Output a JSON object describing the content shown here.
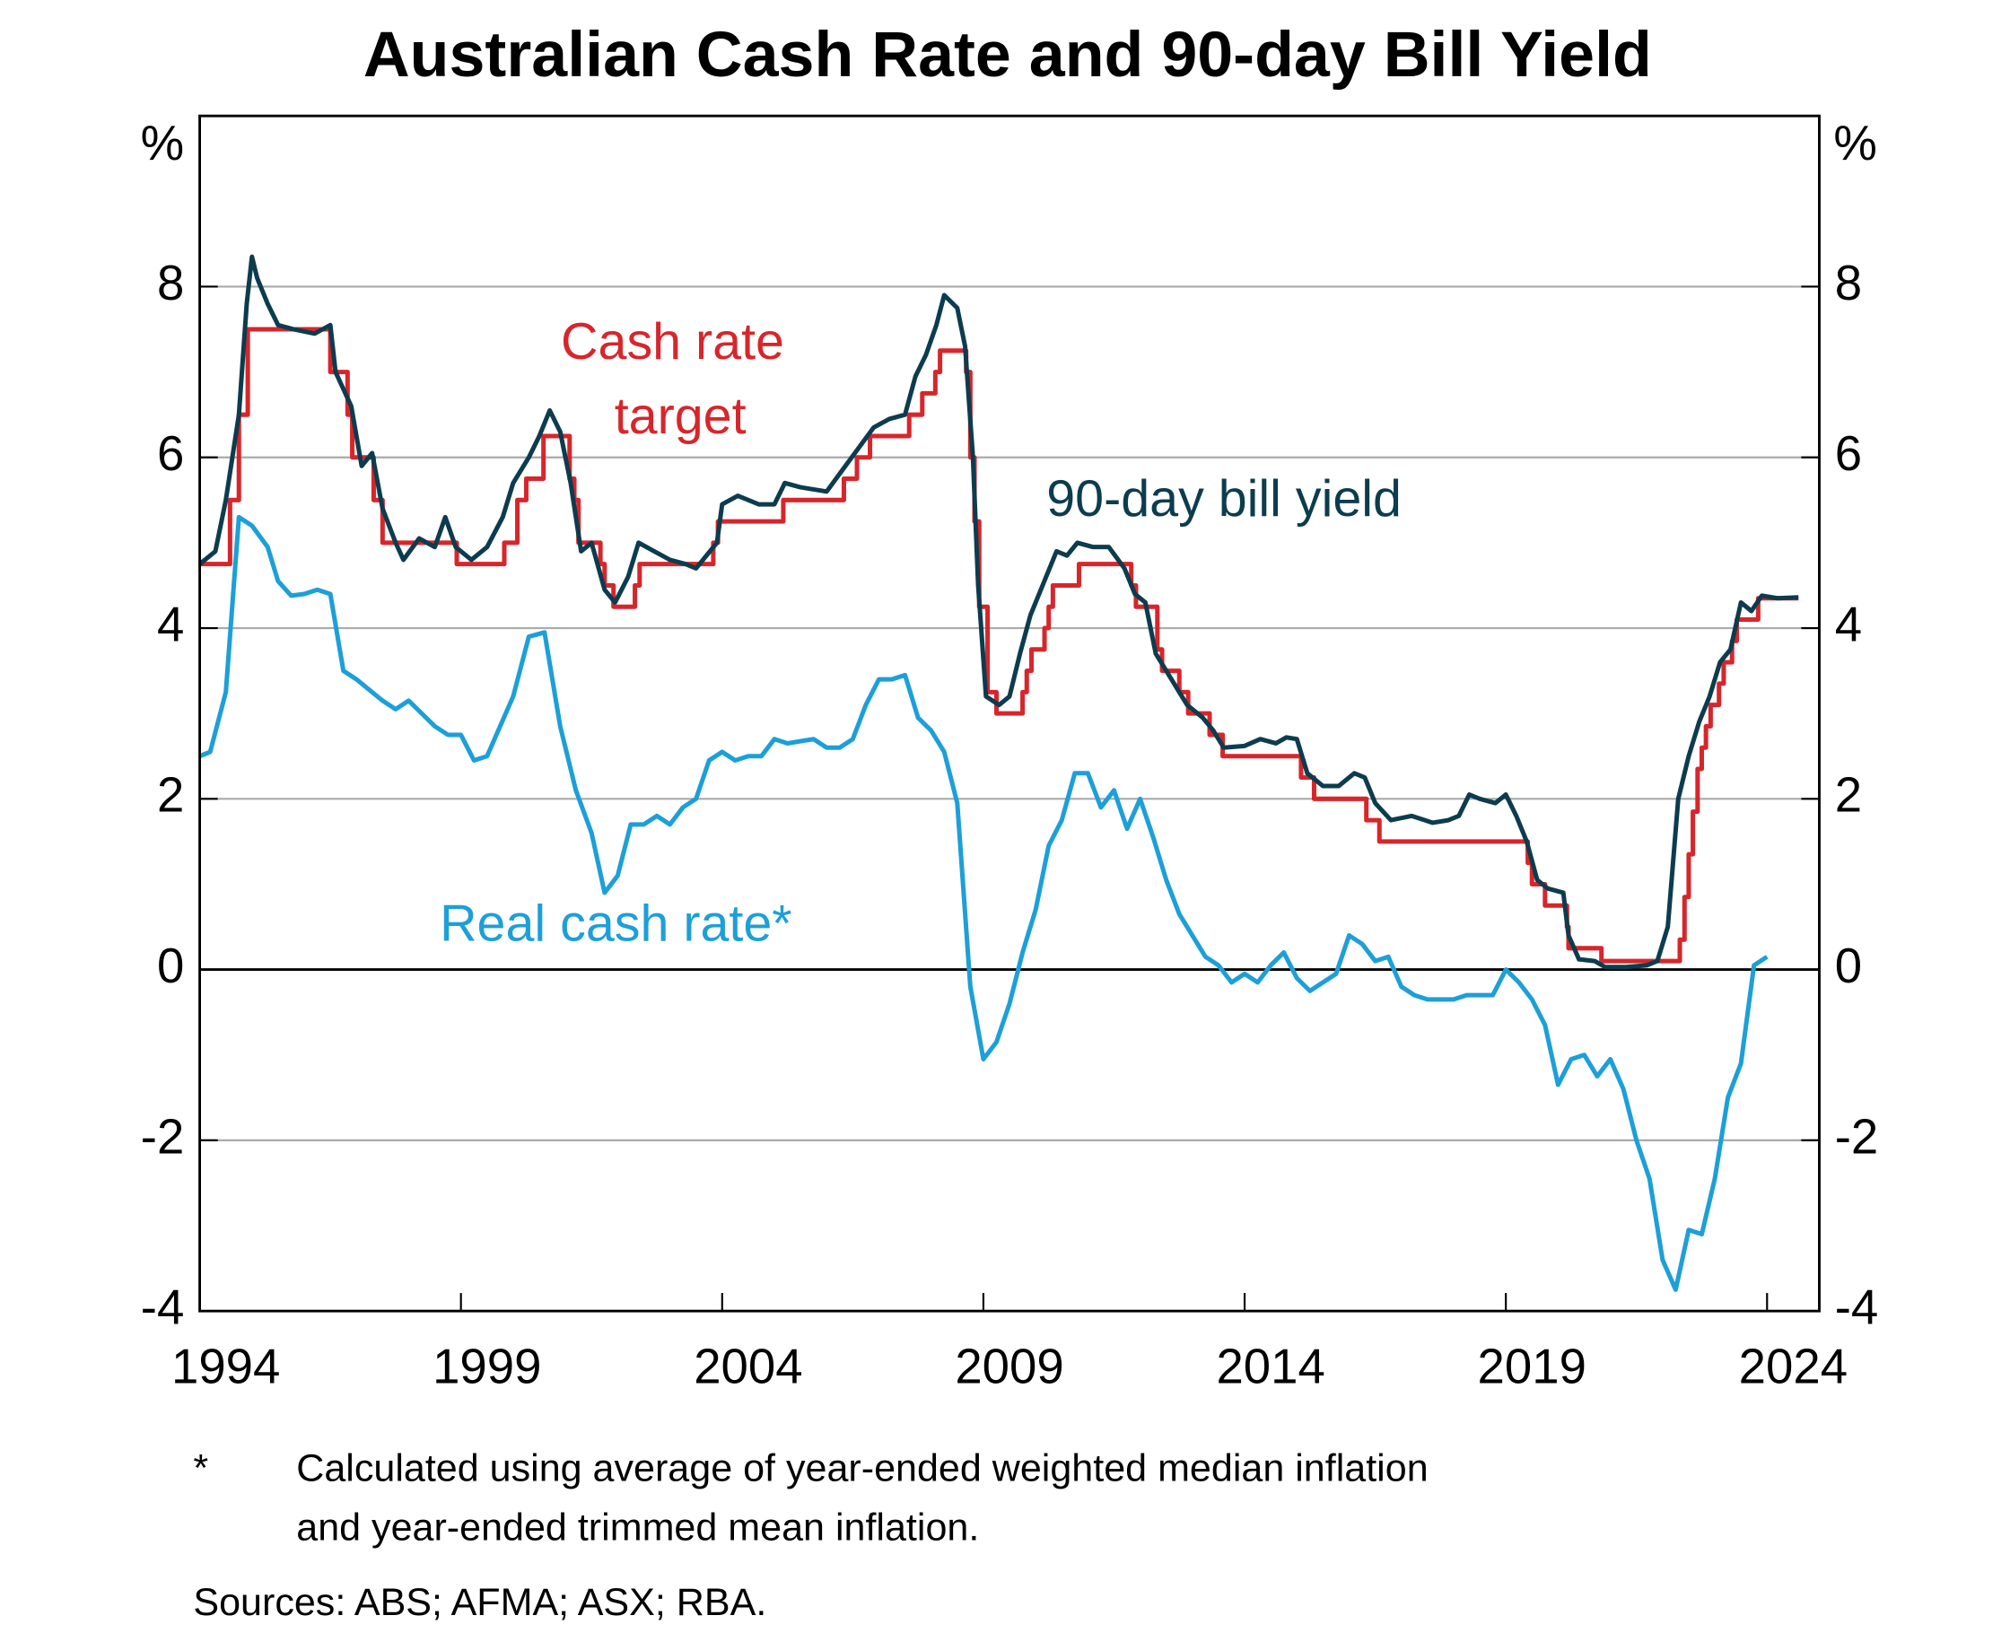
{
  "chart_data": {
    "type": "line",
    "title": "Australian Cash Rate and 90-day Bill Yield",
    "y_unit": "%",
    "xlim": [
      1994,
      2025
    ],
    "xticks": [
      1994,
      1999,
      2004,
      2009,
      2014,
      2019,
      2024
    ],
    "ylim": [
      -4,
      10
    ],
    "yticks": [
      -4,
      -2,
      0,
      2,
      4,
      6,
      8
    ],
    "grid": true,
    "annotations": [
      "Cash rate",
      "target",
      "90-day bill yield",
      "Real cash rate*"
    ],
    "footnote": [
      "*",
      "Calculated using average of year-ended weighted median inflation",
      "and year-ended trimmed mean inflation."
    ],
    "sources": "Sources: ABS; AFMA; ASX; RBA.",
    "series": [
      {
        "name": "Cash rate target",
        "color": "#d7262b",
        "step": true,
        "x": [
          1994.0,
          1994.58,
          1994.75,
          1994.92,
          1996.5,
          1996.83,
          1996.92,
          1997.33,
          1997.5,
          1998.92,
          1999.83,
          2000.08,
          2000.25,
          2000.58,
          2001.08,
          2001.17,
          2001.25,
          2001.67,
          2001.75,
          2001.92,
          2002.33,
          2002.42,
          2003.83,
          2003.92,
          2005.17,
          2006.33,
          2006.58,
          2006.83,
          2007.58,
          2007.83,
          2008.08,
          2008.17,
          2008.67,
          2008.75,
          2008.83,
          2008.92,
          2009.08,
          2009.25,
          2009.75,
          2009.83,
          2009.92,
          2010.17,
          2010.25,
          2010.33,
          2010.83,
          2011.83,
          2011.92,
          2012.33,
          2012.42,
          2012.75,
          2012.92,
          2013.33,
          2013.58,
          2015.08,
          2015.33,
          2016.33,
          2016.58,
          2019.42,
          2019.5,
          2019.75,
          2020.17,
          2020.2,
          2020.83,
          2022.33,
          2022.42,
          2022.5,
          2022.58,
          2022.67,
          2022.75,
          2022.83,
          2022.92,
          2023.08,
          2023.17,
          2023.33,
          2023.42,
          2023.83,
          2024.6
        ],
        "values": [
          4.75,
          5.5,
          6.5,
          7.5,
          7.0,
          6.5,
          6.0,
          5.5,
          5.0,
          4.75,
          5.0,
          5.5,
          5.75,
          6.25,
          5.75,
          5.5,
          5.0,
          4.75,
          4.5,
          4.25,
          4.5,
          4.75,
          5.0,
          5.25,
          5.5,
          5.75,
          6.0,
          6.25,
          6.5,
          6.75,
          7.0,
          7.25,
          7.0,
          6.0,
          5.25,
          4.25,
          3.25,
          3.0,
          3.25,
          3.5,
          3.75,
          4.0,
          4.25,
          4.5,
          4.75,
          4.5,
          4.25,
          3.75,
          3.5,
          3.25,
          3.0,
          2.75,
          2.5,
          2.25,
          2.0,
          1.75,
          1.5,
          1.25,
          1.0,
          0.75,
          0.5,
          0.25,
          0.1,
          0.35,
          0.85,
          1.35,
          1.85,
          2.35,
          2.6,
          2.85,
          3.1,
          3.35,
          3.6,
          3.85,
          4.1,
          4.35,
          4.35
        ]
      },
      {
        "name": "90-day bill yield",
        "color": "#0c3c4e",
        "x": [
          1994.0,
          1994.3,
          1994.5,
          1994.75,
          1994.9,
          1995.0,
          1995.1,
          1995.3,
          1995.5,
          1995.8,
          1996.2,
          1996.5,
          1996.6,
          1996.9,
          1997.1,
          1997.3,
          1997.5,
          1997.75,
          1997.9,
          1998.2,
          1998.5,
          1998.7,
          1998.9,
          1999.2,
          1999.5,
          1999.8,
          2000.0,
          2000.3,
          2000.5,
          2000.7,
          2000.9,
          2001.1,
          2001.3,
          2001.5,
          2001.75,
          2001.95,
          2002.2,
          2002.4,
          2002.7,
          2003.0,
          2003.3,
          2003.5,
          2003.9,
          2004.0,
          2004.3,
          2004.7,
          2005.0,
          2005.2,
          2005.5,
          2006.0,
          2006.3,
          2006.6,
          2006.9,
          2007.2,
          2007.5,
          2007.7,
          2007.9,
          2008.1,
          2008.25,
          2008.5,
          2008.65,
          2008.8,
          2008.9,
          2009.05,
          2009.3,
          2009.5,
          2009.7,
          2009.9,
          2010.2,
          2010.4,
          2010.6,
          2010.8,
          2011.1,
          2011.4,
          2011.7,
          2011.9,
          2012.1,
          2012.3,
          2012.5,
          2012.7,
          2012.9,
          2013.2,
          2013.4,
          2013.6,
          2014.0,
          2014.3,
          2014.6,
          2014.8,
          2015.0,
          2015.2,
          2015.5,
          2015.8,
          2016.1,
          2016.3,
          2016.5,
          2016.8,
          2017.2,
          2017.6,
          2017.9,
          2018.1,
          2018.3,
          2018.5,
          2018.8,
          2019.0,
          2019.2,
          2019.4,
          2019.6,
          2019.8,
          2020.1,
          2020.2,
          2020.4,
          2020.7,
          2020.9,
          2021.3,
          2021.7,
          2021.9,
          2022.1,
          2022.3,
          2022.5,
          2022.7,
          2022.9,
          2023.1,
          2023.3,
          2023.5,
          2023.7,
          2023.9,
          2024.2,
          2024.6
        ],
        "values": [
          4.75,
          4.9,
          5.5,
          6.5,
          7.8,
          8.35,
          8.1,
          7.8,
          7.55,
          7.5,
          7.45,
          7.55,
          7.0,
          6.6,
          5.9,
          6.05,
          5.4,
          5.0,
          4.8,
          5.05,
          4.95,
          5.3,
          4.95,
          4.8,
          4.95,
          5.3,
          5.7,
          6.0,
          6.25,
          6.55,
          6.3,
          5.7,
          4.9,
          5.0,
          4.45,
          4.3,
          4.6,
          5.0,
          4.9,
          4.8,
          4.75,
          4.7,
          5.0,
          5.45,
          5.55,
          5.45,
          5.45,
          5.7,
          5.65,
          5.6,
          5.85,
          6.1,
          6.35,
          6.45,
          6.5,
          6.95,
          7.2,
          7.55,
          7.9,
          7.75,
          7.3,
          6.0,
          4.5,
          3.2,
          3.1,
          3.2,
          3.7,
          4.15,
          4.6,
          4.9,
          4.85,
          5.0,
          4.95,
          4.95,
          4.7,
          4.4,
          4.3,
          3.7,
          3.5,
          3.3,
          3.1,
          2.95,
          2.8,
          2.6,
          2.62,
          2.7,
          2.65,
          2.72,
          2.7,
          2.3,
          2.15,
          2.15,
          2.3,
          2.25,
          1.95,
          1.75,
          1.8,
          1.72,
          1.75,
          1.8,
          2.05,
          2.0,
          1.95,
          2.05,
          1.8,
          1.5,
          1.05,
          0.95,
          0.9,
          0.4,
          0.12,
          0.1,
          0.03,
          0.03,
          0.05,
          0.1,
          0.5,
          2.0,
          2.5,
          2.9,
          3.2,
          3.6,
          3.75,
          4.3,
          4.2,
          4.38,
          4.35,
          4.36
        ]
      },
      {
        "name": "Real cash rate*",
        "color": "#1d9fd8",
        "x": [
          1994.0,
          1994.2,
          1994.5,
          1994.75,
          1995.0,
          1995.3,
          1995.5,
          1995.75,
          1996.0,
          1996.25,
          1996.5,
          1996.75,
          1997.0,
          1997.5,
          1997.75,
          1998.0,
          1998.5,
          1998.75,
          1999.0,
          1999.25,
          1999.5,
          2000.0,
          2000.3,
          2000.6,
          2000.9,
          2001.2,
          2001.5,
          2001.75,
          2002.0,
          2002.25,
          2002.5,
          2002.75,
          2003.0,
          2003.25,
          2003.5,
          2003.75,
          2004.0,
          2004.25,
          2004.5,
          2004.75,
          2005.0,
          2005.25,
          2005.75,
          2006.0,
          2006.25,
          2006.5,
          2006.75,
          2007.0,
          2007.25,
          2007.5,
          2007.75,
          2008.0,
          2008.25,
          2008.5,
          2008.75,
          2009.0,
          2009.25,
          2009.5,
          2009.75,
          2010.0,
          2010.25,
          2010.5,
          2010.75,
          2011.0,
          2011.25,
          2011.5,
          2011.75,
          2012.0,
          2012.25,
          2012.5,
          2012.75,
          2013.0,
          2013.25,
          2013.5,
          2013.75,
          2014.0,
          2014.25,
          2014.5,
          2014.75,
          2015.0,
          2015.25,
          2015.5,
          2015.75,
          2016.0,
          2016.25,
          2016.5,
          2016.75,
          2017.0,
          2017.25,
          2017.5,
          2017.75,
          2018.0,
          2018.25,
          2018.75,
          2019.0,
          2019.25,
          2019.5,
          2019.75,
          2020.0,
          2020.25,
          2020.5,
          2020.75,
          2021.0,
          2021.25,
          2021.5,
          2021.75,
          2022.0,
          2022.25,
          2022.5,
          2022.75,
          2023.0,
          2023.25,
          2023.5,
          2023.75,
          2024.0
        ],
        "values": [
          2.5,
          2.55,
          3.25,
          5.3,
          5.2,
          4.95,
          4.55,
          4.38,
          4.4,
          4.45,
          4.4,
          3.5,
          3.4,
          3.15,
          3.05,
          3.15,
          2.85,
          2.75,
          2.75,
          2.45,
          2.5,
          3.2,
          3.9,
          3.95,
          2.85,
          2.1,
          1.6,
          0.9,
          1.1,
          1.7,
          1.7,
          1.8,
          1.7,
          1.9,
          2.0,
          2.45,
          2.55,
          2.45,
          2.5,
          2.5,
          2.7,
          2.65,
          2.7,
          2.6,
          2.6,
          2.7,
          3.1,
          3.4,
          3.4,
          3.45,
          2.95,
          2.8,
          2.55,
          1.95,
          -0.2,
          -1.05,
          -0.85,
          -0.4,
          0.2,
          0.7,
          1.45,
          1.75,
          2.3,
          2.3,
          1.9,
          2.1,
          1.65,
          2.0,
          1.55,
          1.05,
          0.65,
          0.4,
          0.15,
          0.05,
          -0.15,
          -0.05,
          -0.15,
          0.05,
          0.2,
          -0.1,
          -0.25,
          -0.15,
          -0.05,
          0.4,
          0.3,
          0.1,
          0.15,
          -0.2,
          -0.3,
          -0.35,
          -0.35,
          -0.35,
          -0.3,
          -0.3,
          0,
          -0.15,
          -0.35,
          -0.65,
          -1.35,
          -1.05,
          -1.0,
          -1.25,
          -1.05,
          -1.4,
          -2.0,
          -2.45,
          -3.4,
          -3.75,
          -3.05,
          -3.1,
          -2.45,
          -1.5,
          -1.1,
          0.05,
          0.15
        ]
      }
    ]
  }
}
